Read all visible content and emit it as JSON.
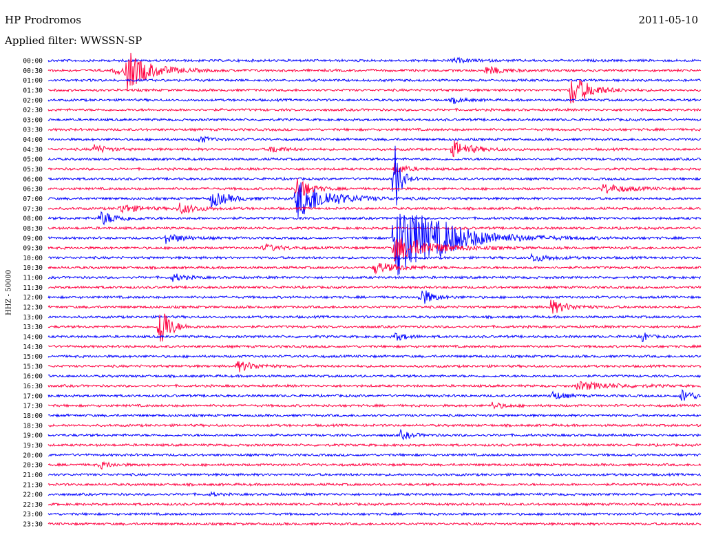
{
  "header": {
    "station": "HP Prodromos",
    "date": "2011-05-10",
    "filter": "Applied filter: WWSSN-SP"
  },
  "chart_data": {
    "type": "line",
    "ylabel": "HHZ - 50000",
    "row_labels": [
      "00:00",
      "00:30",
      "01:00",
      "01:30",
      "02:00",
      "02:30",
      "03:00",
      "03:30",
      "04:00",
      "04:30",
      "05:00",
      "05:30",
      "06:00",
      "06:30",
      "07:00",
      "07:30",
      "08:00",
      "08:30",
      "09:00",
      "09:30",
      "10:00",
      "10:30",
      "11:00",
      "11:30",
      "12:00",
      "12:30",
      "13:00",
      "13:30",
      "14:00",
      "14:30",
      "15:00",
      "15:30",
      "16:00",
      "16:30",
      "17:00",
      "17:30",
      "18:00",
      "18:30",
      "19:00",
      "19:30",
      "20:00",
      "20:30",
      "21:00",
      "21:30",
      "22:00",
      "22:30",
      "23:00",
      "23:30"
    ],
    "trace_colors": [
      "#0000ff",
      "#ff0040"
    ],
    "grid": false,
    "events": [
      {
        "row": 0,
        "x_frac": 0.62,
        "amp": 3,
        "dur": 0.03
      },
      {
        "row": 1,
        "x_frac": 0.12,
        "amp": 28,
        "dur": 0.04
      },
      {
        "row": 1,
        "x_frac": 0.1,
        "amp": 6,
        "dur": 0.02
      },
      {
        "row": 1,
        "x_frac": 0.67,
        "amp": 6,
        "dur": 0.03
      },
      {
        "row": 3,
        "x_frac": 0.8,
        "amp": 26,
        "dur": 0.03
      },
      {
        "row": 4,
        "x_frac": 0.62,
        "amp": 4,
        "dur": 0.02
      },
      {
        "row": 8,
        "x_frac": 0.23,
        "amp": 5,
        "dur": 0.02
      },
      {
        "row": 9,
        "x_frac": 0.07,
        "amp": 7,
        "dur": 0.02
      },
      {
        "row": 9,
        "x_frac": 0.34,
        "amp": 6,
        "dur": 0.02
      },
      {
        "row": 9,
        "x_frac": 0.62,
        "amp": 12,
        "dur": 0.03
      },
      {
        "row": 11,
        "x_frac": 0.53,
        "amp": 8,
        "dur": 0.02
      },
      {
        "row": 12,
        "x_frac": 0.53,
        "amp": 60,
        "dur": 0.01
      },
      {
        "row": 13,
        "x_frac": 0.85,
        "amp": 7,
        "dur": 0.04
      },
      {
        "row": 13,
        "x_frac": 0.38,
        "amp": 22,
        "dur": 0.02
      },
      {
        "row": 14,
        "x_frac": 0.38,
        "amp": 30,
        "dur": 0.05
      },
      {
        "row": 14,
        "x_frac": 0.25,
        "amp": 12,
        "dur": 0.03
      },
      {
        "row": 15,
        "x_frac": 0.11,
        "amp": 7,
        "dur": 0.03
      },
      {
        "row": 15,
        "x_frac": 0.2,
        "amp": 8,
        "dur": 0.03
      },
      {
        "row": 16,
        "x_frac": 0.08,
        "amp": 10,
        "dur": 0.03
      },
      {
        "row": 18,
        "x_frac": 0.53,
        "amp": 60,
        "dur": 0.08
      },
      {
        "row": 18,
        "x_frac": 0.6,
        "amp": 8,
        "dur": 0.03
      },
      {
        "row": 18,
        "x_frac": 0.18,
        "amp": 7,
        "dur": 0.03
      },
      {
        "row": 19,
        "x_frac": 0.53,
        "amp": 20,
        "dur": 0.06
      },
      {
        "row": 19,
        "x_frac": 0.33,
        "amp": 5,
        "dur": 0.03
      },
      {
        "row": 20,
        "x_frac": 0.74,
        "amp": 6,
        "dur": 0.03
      },
      {
        "row": 21,
        "x_frac": 0.5,
        "amp": 8,
        "dur": 0.04
      },
      {
        "row": 22,
        "x_frac": 0.19,
        "amp": 6,
        "dur": 0.02
      },
      {
        "row": 24,
        "x_frac": 0.57,
        "amp": 14,
        "dur": 0.02
      },
      {
        "row": 25,
        "x_frac": 0.77,
        "amp": 10,
        "dur": 0.03
      },
      {
        "row": 27,
        "x_frac": 0.17,
        "amp": 45,
        "dur": 0.015
      },
      {
        "row": 28,
        "x_frac": 0.53,
        "amp": 6,
        "dur": 0.02
      },
      {
        "row": 28,
        "x_frac": 0.91,
        "amp": 8,
        "dur": 0.01
      },
      {
        "row": 31,
        "x_frac": 0.29,
        "amp": 8,
        "dur": 0.03
      },
      {
        "row": 33,
        "x_frac": 0.81,
        "amp": 6,
        "dur": 0.06
      },
      {
        "row": 34,
        "x_frac": 0.77,
        "amp": 7,
        "dur": 0.02
      },
      {
        "row": 34,
        "x_frac": 0.97,
        "amp": 10,
        "dur": 0.02
      },
      {
        "row": 35,
        "x_frac": 0.68,
        "amp": 5,
        "dur": 0.02
      },
      {
        "row": 38,
        "x_frac": 0.54,
        "amp": 6,
        "dur": 0.02
      },
      {
        "row": 41,
        "x_frac": 0.08,
        "amp": 5,
        "dur": 0.02
      },
      {
        "row": 44,
        "x_frac": 0.25,
        "amp": 3,
        "dur": 0.01
      }
    ]
  }
}
